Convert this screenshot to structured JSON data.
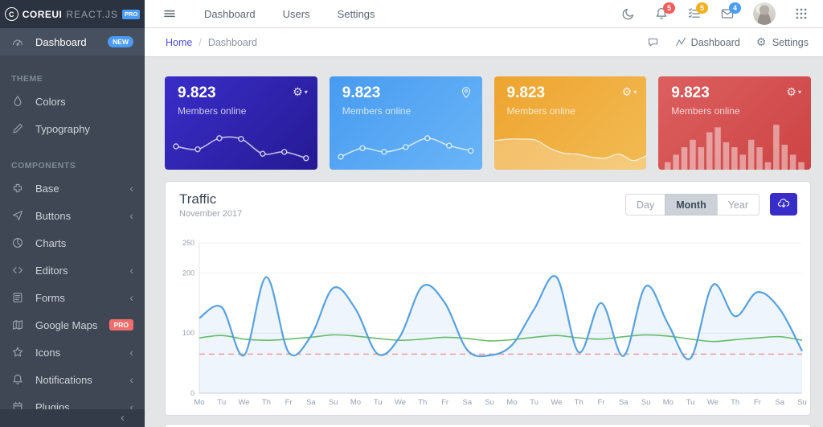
{
  "brand": {
    "logo_letter": "C",
    "name": "COREUI",
    "product": "REACT.JS",
    "badge": "PRO"
  },
  "header": {
    "nav_items": [
      "Dashboard",
      "Users",
      "Settings"
    ],
    "alerts_count": "5",
    "tasks_count": "5",
    "messages_count": "4",
    "badge_colors": {
      "alerts": "#f25c5c",
      "tasks": "#f2b01e",
      "messages": "#4a9cf8"
    }
  },
  "breadcrumb": {
    "home": "Home",
    "separator": "/",
    "current": "Dashboard",
    "actions": [
      {
        "icon": "speech-bubble-icon",
        "label": ""
      },
      {
        "icon": "activity-icon",
        "label": "Dashboard"
      },
      {
        "icon": "gear-icon",
        "label": "Settings"
      }
    ]
  },
  "sidebar": {
    "sections": [
      {
        "title": "",
        "items": [
          {
            "label": "Dashboard",
            "icon": "speedometer-icon",
            "badge": "NEW",
            "badge_color": "#4a9cf8",
            "active": true
          }
        ]
      },
      {
        "title": "THEME",
        "items": [
          {
            "label": "Colors",
            "icon": "drop-icon"
          },
          {
            "label": "Typography",
            "icon": "pencil-icon"
          }
        ]
      },
      {
        "title": "COMPONENTS",
        "items": [
          {
            "label": "Base",
            "icon": "puzzle-icon",
            "chevron": true
          },
          {
            "label": "Buttons",
            "icon": "cursor-icon",
            "chevron": true
          },
          {
            "label": "Charts",
            "icon": "pie-chart-icon"
          },
          {
            "label": "Editors",
            "icon": "code-icon",
            "chevron": true
          },
          {
            "label": "Forms",
            "icon": "notes-icon",
            "chevron": true
          },
          {
            "label": "Google Maps",
            "icon": "map-icon",
            "badge": "PRO",
            "badge_color": "#f16d6d",
            "badge_square": true
          },
          {
            "label": "Icons",
            "icon": "star-icon",
            "chevron": true
          },
          {
            "label": "Notifications",
            "icon": "bell-icon",
            "chevron": true
          },
          {
            "label": "Plugins",
            "icon": "box-icon",
            "chevron": true
          }
        ]
      }
    ],
    "minimizer_icon": "chevron-left-icon"
  },
  "cards": [
    {
      "value": "9.823",
      "label": "Members online",
      "icon": "gear-caret",
      "gradient": [
        "#3a2dc9",
        "#251a93"
      ],
      "spark": "line-dots",
      "dot_fill": "#2f23ad"
    },
    {
      "value": "9.823",
      "label": "Members online",
      "icon": "location-pin",
      "gradient": [
        "#479bf0",
        "#6ab5f8"
      ],
      "spark": "line-dots",
      "dot_fill": "#55a8f4"
    },
    {
      "value": "9.823",
      "label": "Members online",
      "icon": "gear-caret",
      "gradient": [
        "#eea42f",
        "#f2bb53"
      ],
      "spark": "area"
    },
    {
      "value": "9.823",
      "label": "Members online",
      "icon": "gear-caret",
      "gradient": [
        "#dc5f5f",
        "#cd4444"
      ],
      "spark": "bars"
    }
  ],
  "traffic": {
    "title": "Traffic",
    "subtitle": "November 2017",
    "ranges": [
      "Day",
      "Month",
      "Year"
    ],
    "active_range": "Month"
  },
  "chart_data": [
    {
      "id": "traffic",
      "type": "line",
      "title": "Traffic",
      "subtitle": "November 2017",
      "categories": [
        "Mo",
        "Tu",
        "We",
        "Th",
        "Fr",
        "Sa",
        "Su",
        "Mo",
        "Tu",
        "We",
        "Th",
        "Fr",
        "Sa",
        "Su",
        "Mo",
        "Tu",
        "We",
        "Th",
        "Fr",
        "Sa",
        "Su",
        "Mo",
        "Tu",
        "We",
        "Th",
        "Fr",
        "Sa",
        "Su"
      ],
      "series": [
        {
          "name": "traffic",
          "type": "area-line",
          "color": "#57a1de",
          "fill": "rgba(87,161,222,0.10)",
          "values": [
            125,
            143,
            63,
            193,
            68,
            95,
            175,
            140,
            65,
            95,
            178,
            150,
            72,
            63,
            80,
            140,
            193,
            68,
            150,
            62,
            178,
            115,
            58,
            180,
            128,
            168,
            140,
            70
          ]
        },
        {
          "name": "baseline",
          "type": "line",
          "color": "#66bb6a",
          "values": [
            92,
            96,
            90,
            88,
            90,
            93,
            97,
            95,
            91,
            88,
            90,
            93,
            91,
            87,
            89,
            93,
            96,
            92,
            90,
            94,
            97,
            95,
            90,
            86,
            89,
            92,
            94,
            88
          ]
        },
        {
          "name": "threshold",
          "type": "dashed-line",
          "color": "#f29b9b",
          "value": 65
        }
      ],
      "ylim": [
        0,
        250
      ],
      "yticks": [
        0,
        100,
        200,
        250
      ],
      "grid": true,
      "legend": false
    },
    {
      "id": "card1-spark",
      "type": "line",
      "markers": true,
      "color": "rgba(255,255,255,0.7)",
      "values": [
        50,
        42,
        72,
        70,
        30,
        35,
        18
      ]
    },
    {
      "id": "card2-spark",
      "type": "line",
      "markers": true,
      "color": "rgba(255,255,255,0.7)",
      "values": [
        22,
        45,
        35,
        48,
        72,
        52,
        38
      ]
    },
    {
      "id": "card3-spark",
      "type": "area",
      "color": "rgba(255,255,255,0.8)",
      "fill": "rgba(255,255,255,0.25)",
      "values": [
        55,
        58,
        58,
        56,
        40,
        30,
        28,
        22,
        20,
        28,
        15,
        25
      ]
    },
    {
      "id": "card4-spark",
      "type": "bar",
      "color": "rgba(255,255,255,0.45)",
      "values": [
        15,
        30,
        45,
        60,
        45,
        75,
        85,
        55,
        45,
        30,
        60,
        45,
        15,
        90,
        50,
        30,
        15
      ]
    }
  ]
}
